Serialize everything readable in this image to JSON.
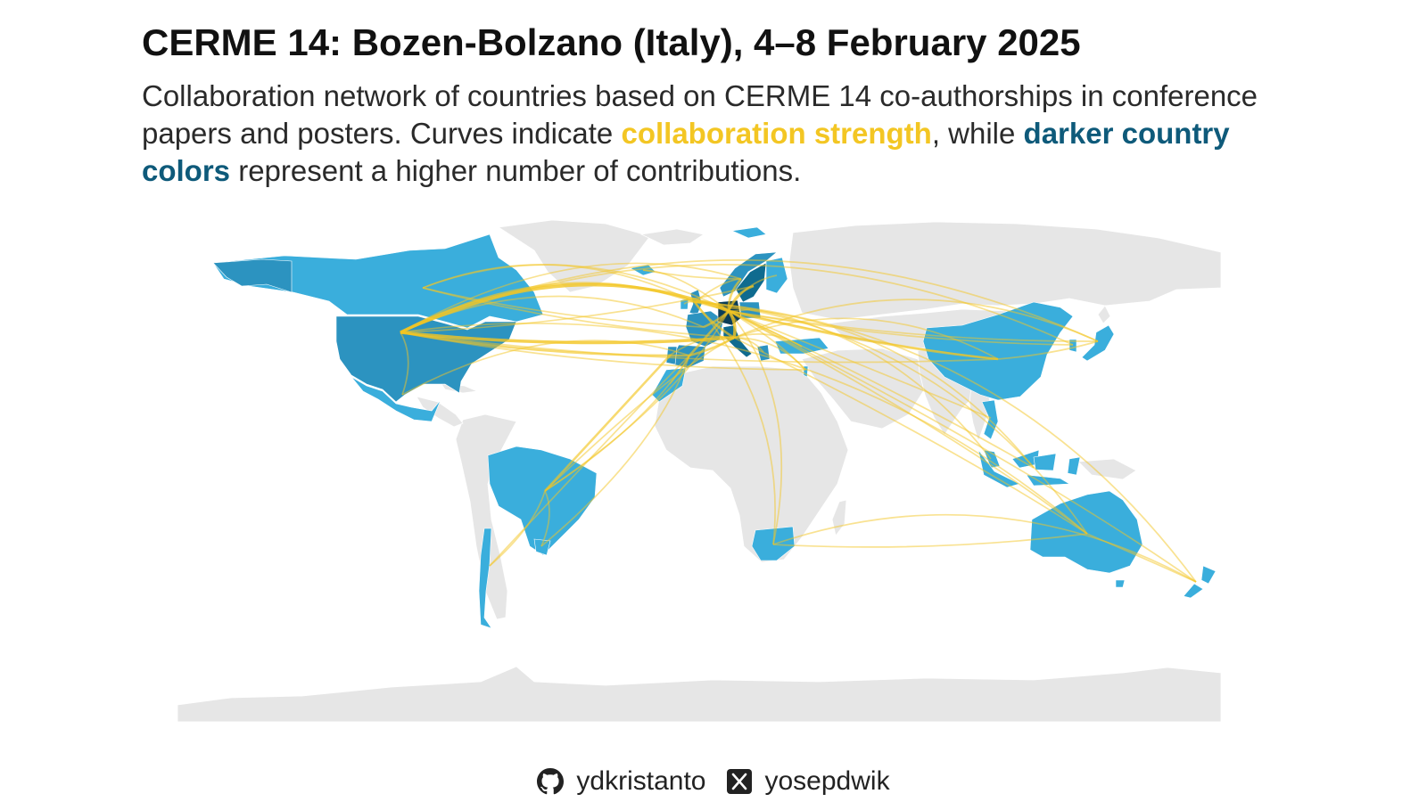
{
  "title": "CERME 14: Bozen-Bolzano (Italy), 4–8 February 2025",
  "subtitle": {
    "part1": "Collaboration network of countries based on CERME 14 co-authorships in conference papers and posters. Curves indicate ",
    "highlight1": "collaboration strength",
    "part2": ", while ",
    "highlight2": "darker country colors",
    "part3": " represent a higher number of contributions."
  },
  "colors": {
    "land_default": "#e6e6e6",
    "country_low": "#3aaedc",
    "country_mid": "#2c93c0",
    "country_high": "#0f6b8f",
    "country_top": "#0a3d57",
    "curve": "#f3c623",
    "highlight_gold": "#f3c623",
    "highlight_blue": "#0e5a7a"
  },
  "map": {
    "countries": [
      {
        "id": "usa",
        "level": "mid"
      },
      {
        "id": "canada",
        "level": "low"
      },
      {
        "id": "mexico",
        "level": "low"
      },
      {
        "id": "brazil",
        "level": "low"
      },
      {
        "id": "chile",
        "level": "low"
      },
      {
        "id": "uruguay",
        "level": "low"
      },
      {
        "id": "uk",
        "level": "mid"
      },
      {
        "id": "ireland",
        "level": "low"
      },
      {
        "id": "spain",
        "level": "mid"
      },
      {
        "id": "portugal",
        "level": "mid"
      },
      {
        "id": "france",
        "level": "mid"
      },
      {
        "id": "germany",
        "level": "top"
      },
      {
        "id": "italy",
        "level": "high"
      },
      {
        "id": "norway",
        "level": "mid"
      },
      {
        "id": "sweden",
        "level": "high"
      },
      {
        "id": "finland",
        "level": "low"
      },
      {
        "id": "poland",
        "level": "mid"
      },
      {
        "id": "greece",
        "level": "mid"
      },
      {
        "id": "turkey",
        "level": "low"
      },
      {
        "id": "israel",
        "level": "low"
      },
      {
        "id": "morocco",
        "level": "low"
      },
      {
        "id": "south-africa",
        "level": "low"
      },
      {
        "id": "china",
        "level": "low"
      },
      {
        "id": "japan",
        "level": "low"
      },
      {
        "id": "south-korea",
        "level": "low"
      },
      {
        "id": "vietnam",
        "level": "low"
      },
      {
        "id": "malaysia",
        "level": "low"
      },
      {
        "id": "indonesia",
        "level": "low"
      },
      {
        "id": "australia",
        "level": "low"
      },
      {
        "id": "new-zealand",
        "level": "low"
      },
      {
        "id": "iceland",
        "level": "low"
      }
    ],
    "collaborations": [
      [
        "usa",
        "germany",
        3
      ],
      [
        "usa",
        "italy",
        3
      ],
      [
        "usa",
        "uk",
        2
      ],
      [
        "usa",
        "spain",
        2
      ],
      [
        "usa",
        "france",
        1
      ],
      [
        "usa",
        "sweden",
        1
      ],
      [
        "usa",
        "norway",
        1
      ],
      [
        "usa",
        "china",
        1
      ],
      [
        "usa",
        "japan",
        1
      ],
      [
        "usa",
        "israel",
        1
      ],
      [
        "canada",
        "germany",
        1
      ],
      [
        "canada",
        "italy",
        1
      ],
      [
        "canada",
        "uk",
        1
      ],
      [
        "canada",
        "france",
        1
      ],
      [
        "mexico",
        "spain",
        1
      ],
      [
        "mexico",
        "usa",
        1
      ],
      [
        "brazil",
        "portugal",
        2
      ],
      [
        "brazil",
        "spain",
        1
      ],
      [
        "brazil",
        "italy",
        1
      ],
      [
        "brazil",
        "germany",
        1
      ],
      [
        "chile",
        "spain",
        1
      ],
      [
        "chile",
        "brazil",
        1
      ],
      [
        "uruguay",
        "brazil",
        1
      ],
      [
        "uruguay",
        "spain",
        1
      ],
      [
        "uk",
        "germany",
        2
      ],
      [
        "uk",
        "italy",
        2
      ],
      [
        "uk",
        "norway",
        1
      ],
      [
        "uk",
        "ireland",
        1
      ],
      [
        "spain",
        "germany",
        2
      ],
      [
        "spain",
        "italy",
        2
      ],
      [
        "portugal",
        "italy",
        1
      ],
      [
        "france",
        "germany",
        2
      ],
      [
        "italy",
        "germany",
        3
      ],
      [
        "sweden",
        "germany",
        2
      ],
      [
        "norway",
        "germany",
        2
      ],
      [
        "finland",
        "germany",
        1
      ],
      [
        "poland",
        "germany",
        1
      ],
      [
        "greece",
        "italy",
        1
      ],
      [
        "turkey",
        "germany",
        1
      ],
      [
        "turkey",
        "italy",
        1
      ],
      [
        "israel",
        "germany",
        1
      ],
      [
        "israel",
        "italy",
        1
      ],
      [
        "morocco",
        "spain",
        1
      ],
      [
        "south-africa",
        "germany",
        1
      ],
      [
        "south-africa",
        "uk",
        1
      ],
      [
        "south-africa",
        "australia",
        1
      ],
      [
        "china",
        "germany",
        2
      ],
      [
        "china",
        "italy",
        1
      ],
      [
        "china",
        "uk",
        1
      ],
      [
        "china",
        "japan",
        1
      ],
      [
        "japan",
        "germany",
        1
      ],
      [
        "japan",
        "italy",
        1
      ],
      [
        "south-korea",
        "germany",
        1
      ],
      [
        "south-korea",
        "usa",
        1
      ],
      [
        "vietnam",
        "germany",
        1
      ],
      [
        "malaysia",
        "uk",
        1
      ],
      [
        "indonesia",
        "germany",
        1
      ],
      [
        "indonesia",
        "netherlands",
        1
      ],
      [
        "australia",
        "germany",
        1
      ],
      [
        "australia",
        "uk",
        1
      ],
      [
        "australia",
        "italy",
        1
      ],
      [
        "australia",
        "usa",
        1
      ],
      [
        "new-zealand",
        "germany",
        1
      ],
      [
        "new-zealand",
        "uk",
        1
      ],
      [
        "new-zealand",
        "australia",
        1
      ],
      [
        "new-zealand",
        "south-africa",
        1
      ],
      [
        "iceland",
        "germany",
        1
      ],
      [
        "iceland",
        "norway",
        1
      ]
    ]
  },
  "footer": {
    "github_icon": "github-icon",
    "github_handle": "ydkristanto",
    "x_icon": "x-logo-icon",
    "x_handle": "yosepdwik"
  }
}
